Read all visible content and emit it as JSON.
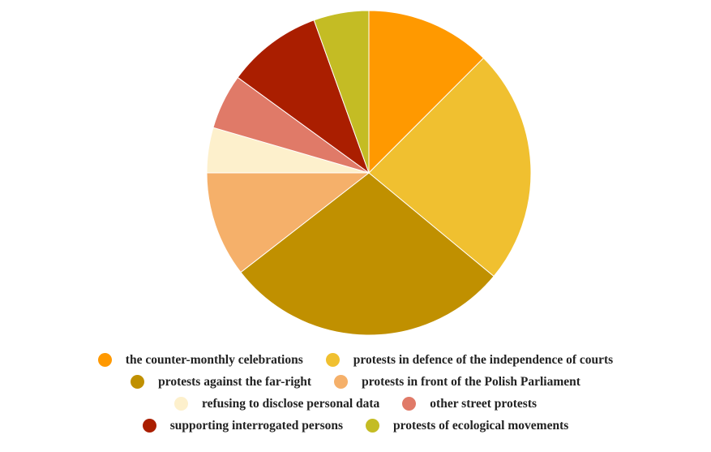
{
  "chart_data": {
    "type": "pie",
    "title": "",
    "slices": [
      {
        "label": "the counter-monthly celebrations",
        "value": 12.5,
        "color": "#FF9900"
      },
      {
        "label": "protests in defence of the independence of courts",
        "value": 23.5,
        "color": "#F0C030"
      },
      {
        "label": "protests against the far-right",
        "value": 28.5,
        "color": "#C09000"
      },
      {
        "label": "protests in front of the Polish Parliament",
        "value": 10.5,
        "color": "#F5B06A"
      },
      {
        "label": "refusing to disclose personal data",
        "value": 4.5,
        "color": "#FDF0CC"
      },
      {
        "label": "other street protests",
        "value": 5.5,
        "color": "#E07A68"
      },
      {
        "label": "supporting interrogated persons",
        "value": 9.5,
        "color": "#AA1E00"
      },
      {
        "label": "protests of ecological movements",
        "value": 5.5,
        "color": "#C4BC24"
      }
    ],
    "legend": {
      "position": "bottom",
      "rows": [
        [
          0,
          1
        ],
        [
          2,
          3
        ],
        [
          4,
          5
        ],
        [
          6,
          7
        ]
      ]
    }
  }
}
